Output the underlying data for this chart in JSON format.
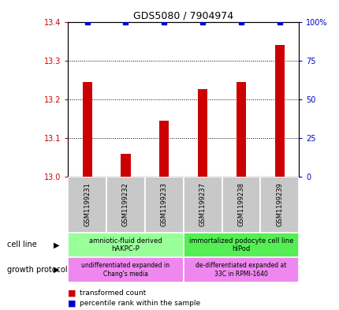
{
  "title": "GDS5080 / 7904974",
  "samples": [
    "GSM1199231",
    "GSM1199232",
    "GSM1199233",
    "GSM1199237",
    "GSM1199238",
    "GSM1199239"
  ],
  "bar_values": [
    13.245,
    13.06,
    13.145,
    13.225,
    13.245,
    13.34
  ],
  "percentile_values": [
    100,
    100,
    100,
    100,
    100,
    100
  ],
  "ymin": 13.0,
  "ymax": 13.4,
  "yticks": [
    13.0,
    13.1,
    13.2,
    13.3,
    13.4
  ],
  "y2min": 0,
  "y2max": 100,
  "y2ticks": [
    0,
    25,
    50,
    75,
    100
  ],
  "bar_color": "#cc0000",
  "percentile_color": "#0000cc",
  "cell_line_groups": [
    {
      "label": "amniotic-fluid derived\nhAKPC-P",
      "samples": [
        0,
        1,
        2
      ],
      "color": "#99ff99"
    },
    {
      "label": "immortalized podocyte cell line\nhIPod",
      "samples": [
        3,
        4,
        5
      ],
      "color": "#55ee55"
    }
  ],
  "growth_protocol_groups": [
    {
      "label": "undifferentiated expanded in\nChang's media",
      "samples": [
        0,
        1,
        2
      ],
      "color": "#ee88ee"
    },
    {
      "label": "de-differentiated expanded at\n33C in RPMI-1640",
      "samples": [
        3,
        4,
        5
      ],
      "color": "#ee88ee"
    }
  ],
  "left_labels": [
    "cell line",
    "growth protocol"
  ],
  "legend_items": [
    {
      "color": "#cc0000",
      "label": "transformed count"
    },
    {
      "color": "#0000cc",
      "label": "percentile rank within the sample"
    }
  ],
  "bar_width": 0.25
}
